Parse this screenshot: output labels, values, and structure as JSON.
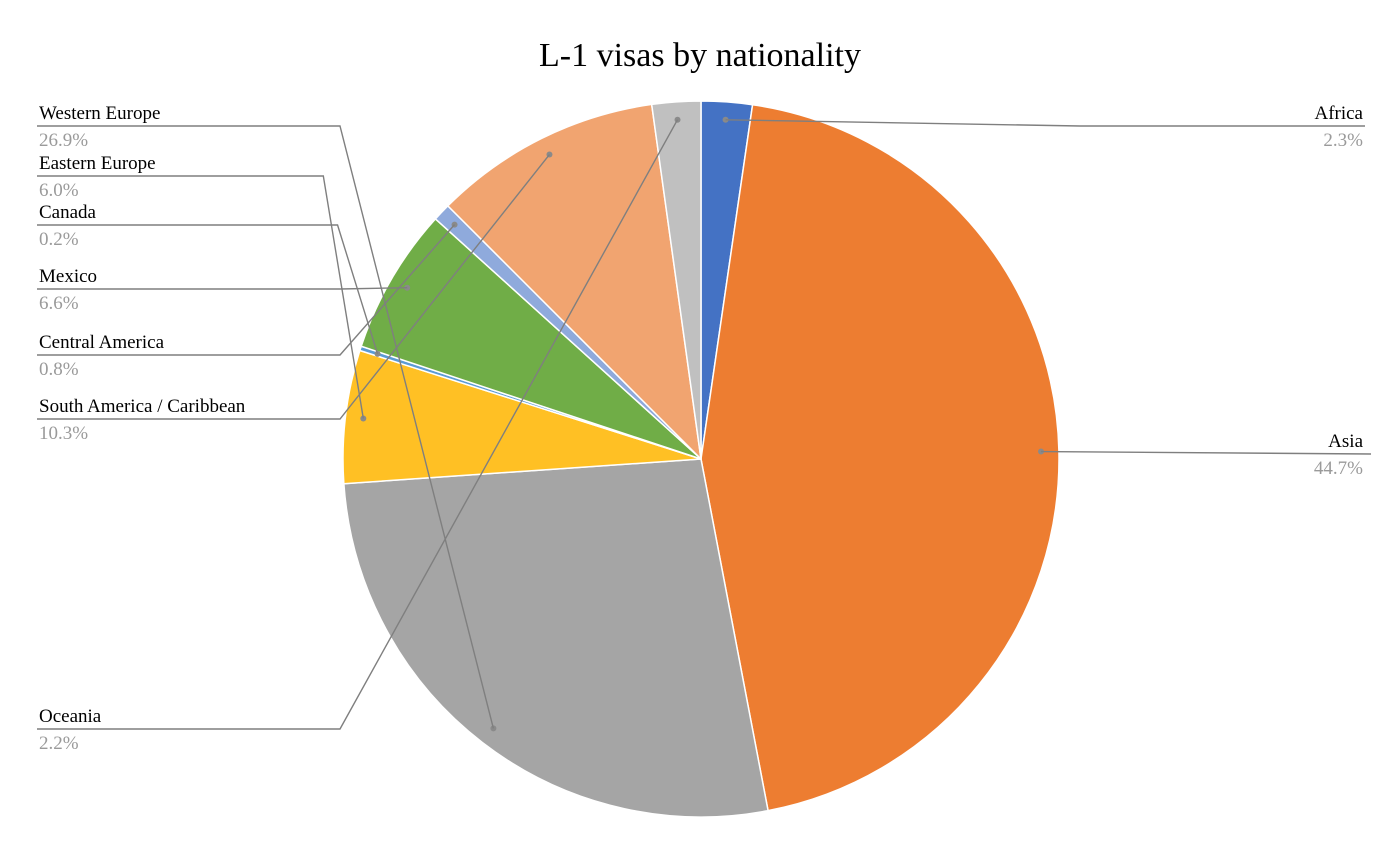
{
  "chart_data": {
    "type": "pie",
    "title": "L-1 visas by nationality",
    "legend": "none",
    "slices": [
      {
        "name": "Africa",
        "value": 2.3,
        "label": "2.3%",
        "color": "#4472c4"
      },
      {
        "name": "Asia",
        "value": 44.7,
        "label": "44.7%",
        "color": "#ed7d31"
      },
      {
        "name": "Western Europe",
        "value": 26.9,
        "label": "26.9%",
        "color": "#a5a5a5"
      },
      {
        "name": "Eastern Europe",
        "value": 6.0,
        "label": "6.0%",
        "color": "#ffc024"
      },
      {
        "name": "Canada",
        "value": 0.2,
        "label": "0.2%",
        "color": "#5b9bd5"
      },
      {
        "name": "Mexico",
        "value": 6.6,
        "label": "6.6%",
        "color": "#70ad47"
      },
      {
        "name": "Central America",
        "value": 0.8,
        "label": "0.8%",
        "color": "#8faadc"
      },
      {
        "name": "South America / Caribbean",
        "value": 10.3,
        "label": "10.3%",
        "color": "#f1a470"
      },
      {
        "name": "Oceania",
        "value": 2.2,
        "label": "2.2%",
        "color": "#c0c0c0"
      }
    ]
  }
}
